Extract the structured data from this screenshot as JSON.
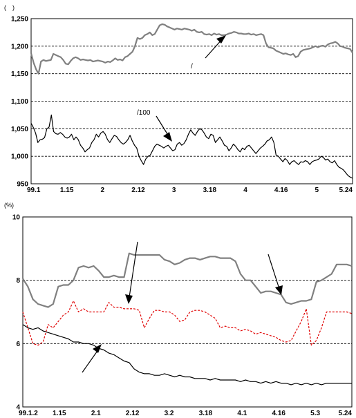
{
  "chart_data": [
    {
      "type": "line",
      "unit_label": "(　)",
      "ylim": [
        950,
        1250
      ],
      "yticks": [
        "950",
        "1,000",
        "1,050",
        "1,100",
        "1,150",
        "1,200",
        "1,250"
      ],
      "grid": "dashed-horizontal",
      "x_tick_labels": [
        "99.1",
        "1.15",
        "2",
        "2.12",
        "3",
        "3.18",
        "4",
        "4.16",
        "5",
        "5.24"
      ],
      "annotations": [
        {
          "text": "/",
          "near_series": 0
        },
        {
          "text": "/100",
          "near_series": 1
        }
      ],
      "series": [
        {
          "color": "#808080",
          "style": "solid",
          "values": [
            1187,
            1170,
            1158,
            1150,
            1172,
            1175,
            1173,
            1174,
            1175,
            1186,
            1184,
            1182,
            1180,
            1175,
            1168,
            1167,
            1173,
            1178,
            1180,
            1178,
            1175,
            1176,
            1175,
            1174,
            1175,
            1172,
            1173,
            1174,
            1173,
            1172,
            1170,
            1172,
            1171,
            1174,
            1178,
            1175,
            1176,
            1174,
            1180,
            1182,
            1186,
            1190,
            1200,
            1215,
            1213,
            1215,
            1220,
            1222,
            1225,
            1220,
            1222,
            1230,
            1238,
            1240,
            1239,
            1236,
            1234,
            1232,
            1230,
            1232,
            1231,
            1230,
            1232,
            1231,
            1230,
            1228,
            1230,
            1226,
            1225,
            1226,
            1222,
            1221,
            1222,
            1220,
            1223,
            1221,
            1222,
            1220,
            1220,
            1221,
            1223,
            1224,
            1226,
            1225,
            1223,
            1223,
            1222,
            1222,
            1223,
            1221,
            1222,
            1220,
            1221,
            1222,
            1220,
            1205,
            1198,
            1197,
            1196,
            1192,
            1190,
            1188,
            1186,
            1187,
            1185,
            1184,
            1186,
            1180,
            1182,
            1190,
            1193,
            1194,
            1195,
            1196,
            1198,
            1200,
            1198,
            1200,
            1201,
            1199,
            1203,
            1205,
            1206,
            1208,
            1205,
            1200,
            1199,
            1197,
            1196,
            1195,
            1188
          ]
        },
        {
          "color": "#000000",
          "style": "solid",
          "values": [
            1060,
            1052,
            1042,
            1025,
            1030,
            1031,
            1034,
            1050,
            1053,
            1075,
            1045,
            1041,
            1040,
            1043,
            1040,
            1035,
            1033,
            1035,
            1040,
            1030,
            1035,
            1030,
            1020,
            1015,
            1008,
            1012,
            1015,
            1025,
            1030,
            1040,
            1035,
            1042,
            1045,
            1040,
            1030,
            1025,
            1032,
            1038,
            1036,
            1030,
            1025,
            1022,
            1025,
            1030,
            1038,
            1028,
            1020,
            1015,
            1000,
            992,
            985,
            995,
            1000,
            1002,
            1010,
            1018,
            1022,
            1020,
            1018,
            1015,
            1018,
            1020,
            1015,
            1010,
            1012,
            1022,
            1025,
            1020,
            1023,
            1030,
            1040,
            1048,
            1042,
            1038,
            1045,
            1050,
            1048,
            1042,
            1035,
            1032,
            1040,
            1038,
            1025,
            1030,
            1035,
            1028,
            1020,
            1018,
            1010,
            1015,
            1022,
            1018,
            1012,
            1008,
            1015,
            1012,
            1018,
            1020,
            1015,
            1010,
            1005,
            1010,
            1015,
            1018,
            1022,
            1028,
            1030,
            1035,
            1025,
            1002,
            1000,
            995,
            990,
            996,
            992,
            985,
            990,
            992,
            988,
            985,
            990,
            989,
            992,
            990,
            985,
            990,
            992,
            993,
            995,
            1000,
            998,
            993,
            995,
            990,
            988,
            992,
            985,
            980,
            978,
            975,
            970,
            965,
            962,
            960
          ]
        }
      ]
    },
    {
      "type": "line",
      "unit_label": "(%)",
      "ylim": [
        4,
        10
      ],
      "yticks": [
        "4",
        "6",
        "8",
        "10"
      ],
      "grid": "dashed-horizontal",
      "x_tick_labels": [
        "99.1.2",
        "1.15",
        "2.1",
        "2.12",
        "3.2",
        "3.18",
        "4.1",
        "4.16",
        "5.3",
        "5.24"
      ],
      "series": [
        {
          "color": "#808080",
          "style": "solid",
          "values": [
            8.05,
            7.8,
            7.4,
            7.25,
            7.2,
            7.15,
            7.25,
            7.8,
            7.85,
            7.85,
            8.0,
            8.4,
            8.45,
            8.4,
            8.45,
            8.3,
            8.1,
            8.1,
            8.15,
            8.1,
            8.1,
            8.85,
            8.8,
            8.8,
            8.8,
            8.8,
            8.8,
            8.8,
            8.65,
            8.6,
            8.5,
            8.55,
            8.65,
            8.7,
            8.7,
            8.65,
            8.7,
            8.75,
            8.75,
            8.7,
            8.7,
            8.7,
            8.6,
            8.2,
            8.0,
            8.0,
            7.8,
            7.6,
            7.65,
            7.65,
            7.6,
            7.55,
            7.3,
            7.25,
            7.3,
            7.35,
            7.35,
            7.4,
            7.95,
            8.0,
            8.1,
            8.2,
            8.5,
            8.5,
            8.5,
            8.45
          ]
        },
        {
          "color": "#e00000",
          "style": "dashed",
          "values": [
            7.0,
            6.5,
            6.0,
            5.95,
            6.05,
            6.6,
            6.5,
            6.7,
            6.9,
            7.0,
            7.35,
            7.0,
            7.1,
            7.0,
            7.0,
            7.0,
            7.0,
            7.3,
            7.15,
            7.15,
            7.1,
            7.1,
            7.1,
            7.05,
            6.5,
            6.8,
            7.05,
            7.05,
            7.0,
            7.0,
            6.9,
            6.7,
            6.75,
            7.0,
            7.05,
            7.05,
            7.0,
            6.9,
            6.8,
            6.5,
            6.55,
            6.5,
            6.5,
            6.4,
            6.45,
            6.4,
            6.3,
            6.35,
            6.3,
            6.25,
            6.2,
            6.1,
            6.05,
            6.1,
            6.4,
            6.7,
            7.1,
            5.95,
            6.1,
            6.5,
            7.0,
            7.0,
            7.0,
            7.0,
            7.0,
            6.95
          ]
        },
        {
          "color": "#000000",
          "style": "solid",
          "values": [
            6.6,
            6.5,
            6.45,
            6.5,
            6.4,
            6.35,
            6.3,
            6.25,
            6.2,
            6.15,
            6.05,
            6.05,
            6.0,
            6.0,
            5.95,
            5.85,
            5.8,
            5.7,
            5.65,
            5.55,
            5.45,
            5.4,
            5.2,
            5.1,
            5.05,
            5.05,
            5.0,
            5.0,
            5.05,
            5.0,
            4.95,
            5.0,
            4.95,
            4.95,
            4.9,
            4.9,
            4.9,
            4.85,
            4.9,
            4.85,
            4.85,
            4.85,
            4.85,
            4.8,
            4.85,
            4.8,
            4.8,
            4.75,
            4.8,
            4.75,
            4.8,
            4.75,
            4.75,
            4.7,
            4.75,
            4.7,
            4.75,
            4.7,
            4.75,
            4.7,
            4.75,
            4.75,
            4.75,
            4.75,
            4.75,
            4.75
          ]
        }
      ]
    }
  ]
}
